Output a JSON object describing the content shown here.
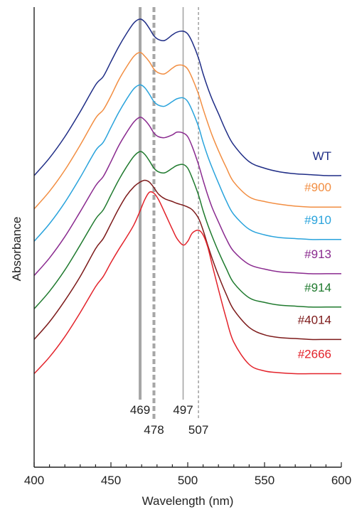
{
  "chart_data": {
    "type": "line",
    "title": "",
    "xlabel": "Wavelength (nm)",
    "ylabel": "Absorbance",
    "xlim": [
      400,
      600
    ],
    "x_ticks": [
      "400",
      "450",
      "500",
      "550",
      "600"
    ],
    "x_minor_step": 10,
    "grid": false,
    "legend": "series labels at right end of each trace",
    "offset_step": 0.35,
    "x": [
      400,
      410,
      420,
      430,
      440,
      445,
      450,
      455,
      460,
      465,
      469,
      472,
      475,
      478,
      481,
      485,
      490,
      493,
      497,
      500,
      503,
      507,
      510,
      513,
      516,
      520,
      525,
      530,
      540,
      550,
      560,
      570,
      580,
      590,
      600
    ],
    "series": [
      {
        "name": "WT",
        "color": "#1f2d86",
        "values": [
          3.2,
          3.39,
          3.62,
          3.89,
          4.18,
          4.27,
          4.43,
          4.59,
          4.73,
          4.85,
          4.89,
          4.86,
          4.79,
          4.71,
          4.67,
          4.66,
          4.72,
          4.75,
          4.76,
          4.73,
          4.64,
          4.47,
          4.3,
          4.15,
          4.02,
          3.87,
          3.68,
          3.53,
          3.35,
          3.28,
          3.24,
          3.22,
          3.21,
          3.2,
          3.2
        ]
      },
      {
        "name": "#900",
        "color": "#f28e42",
        "values": [
          2.84,
          3.03,
          3.26,
          3.53,
          3.82,
          3.91,
          4.06,
          4.23,
          4.37,
          4.49,
          4.53,
          4.49,
          4.43,
          4.35,
          4.31,
          4.3,
          4.36,
          4.39,
          4.39,
          4.35,
          4.25,
          4.08,
          3.92,
          3.77,
          3.63,
          3.47,
          3.29,
          3.13,
          2.97,
          2.92,
          2.89,
          2.87,
          2.86,
          2.86,
          2.86
        ]
      },
      {
        "name": "#910",
        "color": "#29a3dc",
        "values": [
          2.49,
          2.68,
          2.91,
          3.18,
          3.47,
          3.56,
          3.72,
          3.88,
          4.02,
          4.14,
          4.18,
          4.15,
          4.08,
          4.0,
          3.96,
          3.95,
          4.0,
          4.03,
          4.04,
          4.0,
          3.9,
          3.73,
          3.56,
          3.41,
          3.28,
          3.12,
          2.93,
          2.78,
          2.62,
          2.56,
          2.53,
          2.52,
          2.51,
          2.51,
          2.51
        ]
      },
      {
        "name": "#913",
        "color": "#8a2a8f",
        "values": [
          2.12,
          2.31,
          2.54,
          2.81,
          3.09,
          3.19,
          3.35,
          3.52,
          3.66,
          3.78,
          3.83,
          3.8,
          3.74,
          3.66,
          3.62,
          3.61,
          3.64,
          3.67,
          3.66,
          3.62,
          3.51,
          3.32,
          3.15,
          2.99,
          2.85,
          2.7,
          2.52,
          2.38,
          2.24,
          2.19,
          2.16,
          2.15,
          2.14,
          2.14,
          2.14
        ]
      },
      {
        "name": "#914",
        "color": "#1f7a2e",
        "values": [
          1.76,
          1.95,
          2.18,
          2.45,
          2.73,
          2.83,
          2.99,
          3.15,
          3.29,
          3.41,
          3.46,
          3.43,
          3.36,
          3.28,
          3.24,
          3.23,
          3.28,
          3.31,
          3.32,
          3.28,
          3.17,
          2.99,
          2.82,
          2.67,
          2.54,
          2.38,
          2.2,
          2.04,
          1.88,
          1.83,
          1.8,
          1.79,
          1.78,
          1.78,
          1.78
        ]
      },
      {
        "name": "#4014",
        "color": "#7d1a1a",
        "values": [
          1.43,
          1.62,
          1.85,
          2.11,
          2.41,
          2.52,
          2.68,
          2.84,
          2.98,
          3.08,
          3.13,
          3.15,
          3.13,
          3.07,
          3.0,
          2.95,
          2.92,
          2.9,
          2.88,
          2.86,
          2.83,
          2.74,
          2.61,
          2.45,
          2.3,
          2.12,
          1.92,
          1.75,
          1.56,
          1.48,
          1.45,
          1.44,
          1.43,
          1.43,
          1.43
        ]
      },
      {
        "name": "#2666",
        "color": "#e3232b",
        "values": [
          1.06,
          1.24,
          1.46,
          1.72,
          2.0,
          2.11,
          2.26,
          2.4,
          2.53,
          2.67,
          2.82,
          2.94,
          3.02,
          3.01,
          2.94,
          2.8,
          2.62,
          2.52,
          2.45,
          2.49,
          2.58,
          2.61,
          2.56,
          2.43,
          2.23,
          1.97,
          1.66,
          1.4,
          1.16,
          1.09,
          1.07,
          1.06,
          1.06,
          1.06,
          1.06
        ]
      }
    ],
    "markers": [
      {
        "label": "469",
        "x": 469,
        "style": "thick-solid",
        "label_row": 1
      },
      {
        "label": "478",
        "x": 478,
        "style": "thick-dashed",
        "label_row": 2
      },
      {
        "label": "497",
        "x": 497,
        "style": "thin-solid",
        "label_row": 1
      },
      {
        "label": "507",
        "x": 507,
        "style": "thin-dashed",
        "label_row": 2
      }
    ],
    "marker_color": "#a6a6a6",
    "axis_color": "#222222"
  }
}
